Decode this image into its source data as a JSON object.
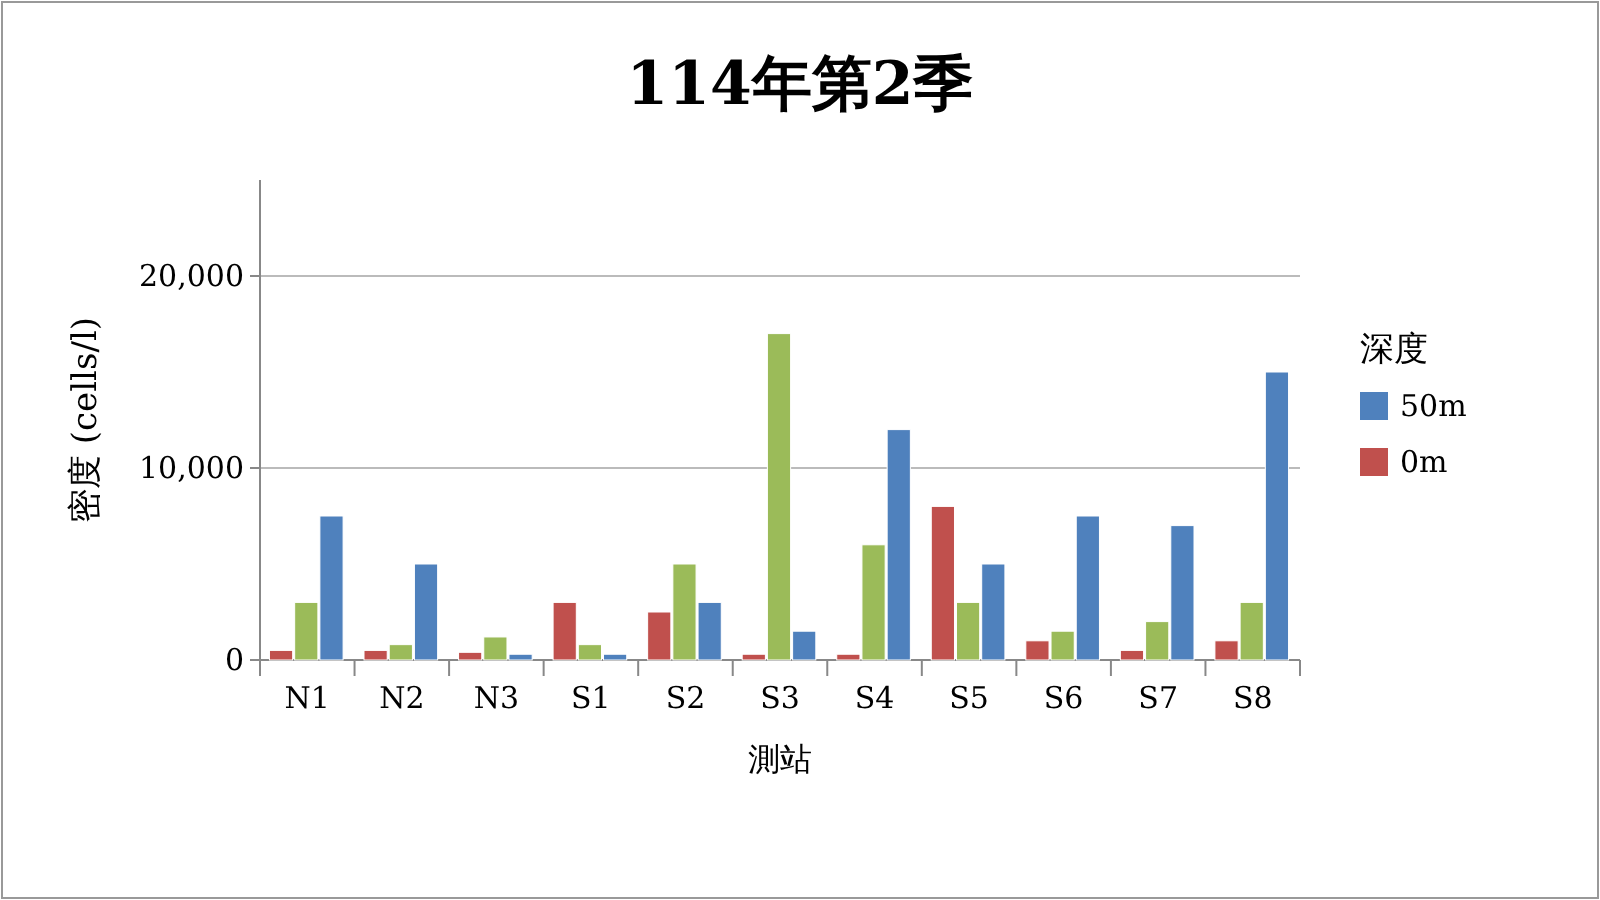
{
  "chart_data": {
    "type": "bar",
    "title": "114年第2季",
    "xlabel": "測站",
    "ylabel": "密度 (cells/l)",
    "legend_title": "深度",
    "categories": [
      "N1",
      "N2",
      "N3",
      "S1",
      "S2",
      "S3",
      "S4",
      "S5",
      "S6",
      "S7",
      "S8"
    ],
    "series": [
      {
        "name": "0m",
        "color": "#c0504d",
        "values": [
          500,
          500,
          400,
          3000,
          2500,
          300,
          300,
          8000,
          1000,
          500,
          1000
        ]
      },
      {
        "color": "#9bbb59",
        "values": [
          3000,
          800,
          1200,
          800,
          5000,
          17000,
          6000,
          3000,
          1500,
          2000,
          3000
        ]
      },
      {
        "name": "50m",
        "color": "#4f81bd",
        "values": [
          7500,
          5000,
          300,
          300,
          3000,
          1500,
          12000,
          5000,
          7500,
          7000,
          15000
        ]
      }
    ],
    "ylim": [
      0,
      25000
    ],
    "yticks": [
      {
        "value": 0,
        "label": "0"
      },
      {
        "value": 10000,
        "label": "10,000"
      },
      {
        "value": 20000,
        "label": "20,000"
      }
    ],
    "grid": "y",
    "legend": "right"
  }
}
